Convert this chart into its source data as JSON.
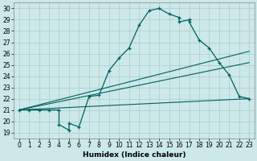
{
  "xlabel": "Humidex (Indice chaleur)",
  "bg_color": "#cce8e8",
  "line_color": "#006060",
  "grid_color": "#aacccc",
  "xlim": [
    -0.5,
    23.5
  ],
  "ylim": [
    18.5,
    30.5
  ],
  "yticks": [
    19,
    20,
    21,
    22,
    23,
    24,
    25,
    26,
    27,
    28,
    29,
    30
  ],
  "xticks": [
    0,
    1,
    2,
    3,
    4,
    5,
    6,
    7,
    8,
    9,
    10,
    11,
    12,
    13,
    14,
    15,
    16,
    17,
    18,
    19,
    20,
    21,
    22,
    23
  ],
  "curve1_x": [
    0,
    1,
    2,
    3,
    4,
    4,
    5,
    5,
    6,
    7,
    8,
    9,
    10,
    11,
    12,
    13,
    14,
    15,
    16,
    16,
    17,
    17,
    18,
    19,
    20,
    21,
    22,
    23
  ],
  "curve1_y": [
    21,
    21,
    21,
    21,
    21,
    19.7,
    19.2,
    19.8,
    19.5,
    22.2,
    22.3,
    24.5,
    25.6,
    26.5,
    28.5,
    29.8,
    30.0,
    29.5,
    29.2,
    28.8,
    29.0,
    28.8,
    27.2,
    26.5,
    25.2,
    24.1,
    22.2,
    22.0
  ],
  "line2_x": [
    0,
    23
  ],
  "line2_y": [
    21.0,
    26.2
  ],
  "line3_x": [
    0,
    23
  ],
  "line3_y": [
    21.0,
    25.2
  ],
  "line4_x": [
    0,
    23
  ],
  "line4_y": [
    21.0,
    22.0
  ],
  "tick_fontsize": 5.5,
  "xlabel_fontsize": 6.5
}
